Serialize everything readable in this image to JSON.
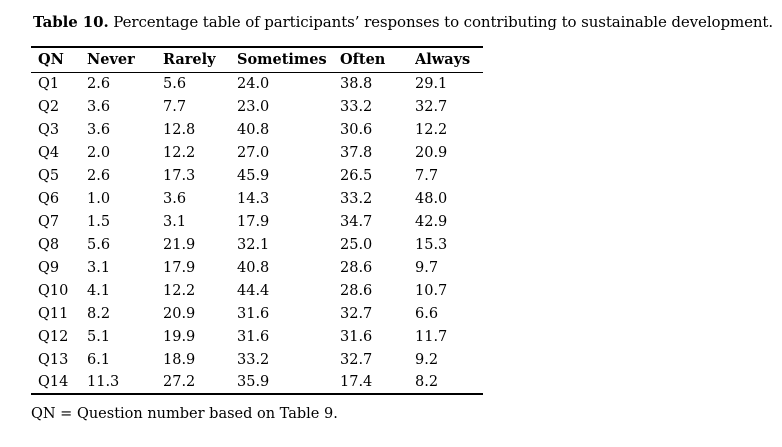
{
  "title": {
    "label": "Table 10.",
    "caption": "Percentage table of participants’ responses to contributing to sustainable development."
  },
  "table": {
    "columns": [
      "QN",
      "Never",
      "Rarely",
      "Sometimes",
      "Often",
      "Always"
    ],
    "rows": [
      {
        "qn": "Q1",
        "values": [
          "2.6",
          "5.6",
          "24.0",
          "38.8",
          "29.1"
        ]
      },
      {
        "qn": "Q2",
        "values": [
          "3.6",
          "7.7",
          "23.0",
          "33.2",
          "32.7"
        ]
      },
      {
        "qn": "Q3",
        "values": [
          "3.6",
          "12.8",
          "40.8",
          "30.6",
          "12.2"
        ]
      },
      {
        "qn": "Q4",
        "values": [
          "2.0",
          "12.2",
          "27.0",
          "37.8",
          "20.9"
        ]
      },
      {
        "qn": "Q5",
        "values": [
          "2.6",
          "17.3",
          "45.9",
          "26.5",
          "7.7"
        ]
      },
      {
        "qn": "Q6",
        "values": [
          "1.0",
          "3.6",
          "14.3",
          "33.2",
          "48.0"
        ]
      },
      {
        "qn": "Q7",
        "values": [
          "1.5",
          "3.1",
          "17.9",
          "34.7",
          "42.9"
        ]
      },
      {
        "qn": "Q8",
        "values": [
          "5.6",
          "21.9",
          "32.1",
          "25.0",
          "15.3"
        ]
      },
      {
        "qn": "Q9",
        "values": [
          "3.1",
          "17.9",
          "40.8",
          "28.6",
          "9.7"
        ]
      },
      {
        "qn": "Q10",
        "values": [
          "4.1",
          "12.2",
          "44.4",
          "28.6",
          "10.7"
        ]
      },
      {
        "qn": "Q11",
        "values": [
          "8.2",
          "20.9",
          "31.6",
          "32.7",
          "6.6"
        ]
      },
      {
        "qn": "Q12",
        "values": [
          "5.1",
          "19.9",
          "31.6",
          "31.6",
          "11.7"
        ]
      },
      {
        "qn": "Q13",
        "values": [
          "6.1",
          "18.9",
          "33.2",
          "32.7",
          "9.2"
        ]
      },
      {
        "qn": "Q14",
        "values": [
          "11.3",
          "27.2",
          "35.9",
          "17.4",
          "8.2"
        ]
      }
    ]
  },
  "footnote": "QN = Question number based on Table 9."
}
